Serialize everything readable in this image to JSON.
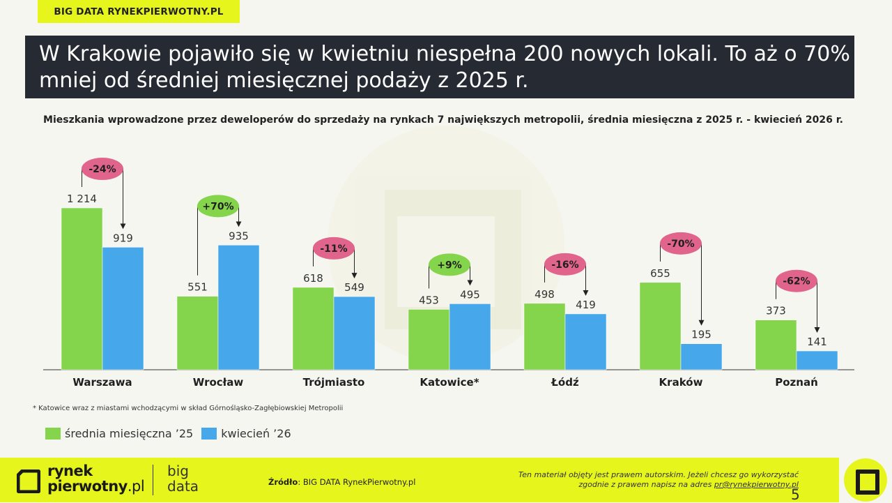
{
  "top_tag": "BIG DATA RYNEKPIERWOTNY.PL",
  "headline": "W Krakowie pojawiło się w kwietniu niespełna 200 nowych lokali. To aż o 70% mniej od średniej miesięcznej podaży z 2025 r.",
  "chart_data": {
    "type": "bar",
    "title": "Mieszkania wprowadzone przez deweloperów do sprzedaży na rynkach 7 największych metropolii, średnia miesięczna z 2025 r.  - kwiecień 2026 r.",
    "categories": [
      "Warszawa",
      "Wrocław",
      "Trójmiasto",
      "Katowice*",
      "Łódź",
      "Kraków",
      "Poznań"
    ],
    "series": [
      {
        "name": "średnia miesięczna '25",
        "color": "#84d44c",
        "values": [
          1214,
          551,
          618,
          453,
          498,
          655,
          373
        ],
        "labels": [
          "1 214",
          "551",
          "618",
          "453",
          "498",
          "655",
          "373"
        ]
      },
      {
        "name": "kwiecień '26",
        "color": "#46a8ea",
        "values": [
          919,
          935,
          549,
          495,
          419,
          195,
          141
        ],
        "labels": [
          "919",
          "935",
          "549",
          "495",
          "419",
          "195",
          "141"
        ]
      }
    ],
    "changes": [
      "-24%",
      "+70%",
      "-11%",
      "+9%",
      "-16%",
      "-70%",
      "-62%"
    ],
    "change_colors": {
      "negative": "#e0648c",
      "positive": "#84d44c"
    },
    "ylim": [
      0,
      1300
    ],
    "grid": false,
    "legend_position": "bottom-left"
  },
  "note": "* Katowice wraz z miastami wchodzącymi w skład Górnośląsko-Zagłębiowskiej Metropolii",
  "legend": {
    "series_a": "średnia miesięczna ’25",
    "series_b": "kwiecień ’26"
  },
  "footer": {
    "logo_line1": "rynek",
    "logo_line2a": "pierwotny",
    "logo_line2b": ".pl",
    "logo_bd1": "big",
    "logo_bd2": "data",
    "source_label": "Źródło",
    "source_text": ": BIG DATA RynekPierwotny.pl",
    "copyright_line1": "Ten materiał objęty jest prawem autorskim. Jeżeli chcesz go wykorzystać",
    "copyright_line2": "zgodnie z prawem napisz na adres ",
    "copyright_email": "pr@rynekpierwotny.pl",
    "page_number": "5"
  },
  "colors": {
    "accent": "#e6f51c",
    "dark": "#262a33"
  }
}
